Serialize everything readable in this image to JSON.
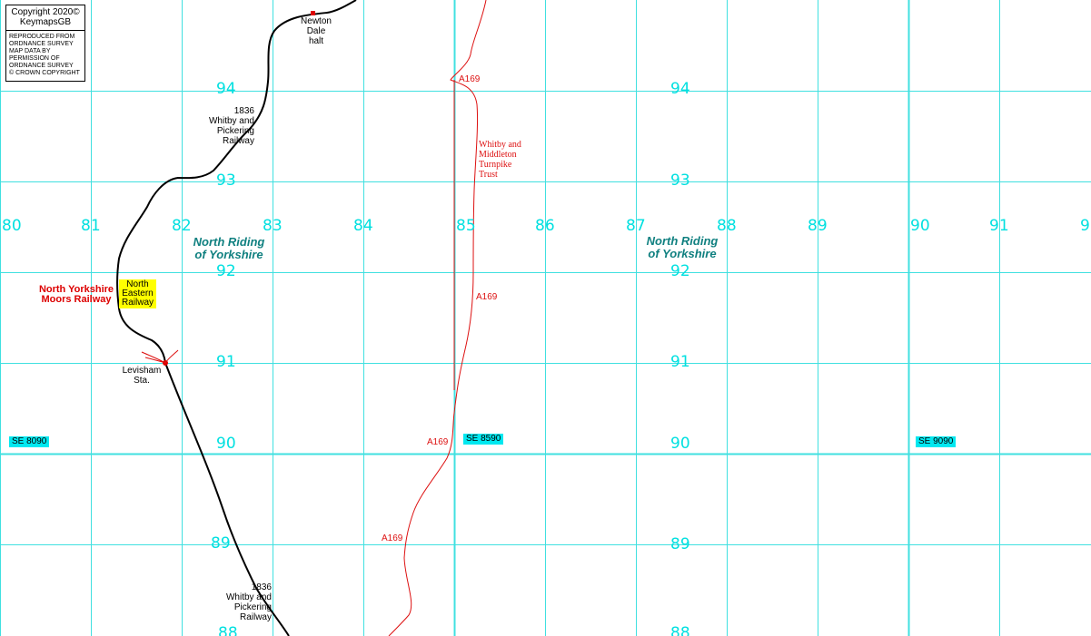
{
  "map": {
    "colors": {
      "grid": "#40e0e0",
      "grid_label": "#00e0e0",
      "railway": "#000000",
      "road": "#dd1111",
      "county": "#108080",
      "nymr_label": "#dd0000",
      "ner_background": "#ffff00",
      "gridref_background": "#00e8f0",
      "station_dot": "#dd0000"
    },
    "copyright": {
      "line1": "Copyright 2020©",
      "line2": "KeymapsGB",
      "notice_lines": [
        "REPRODUCED FROM",
        "ORDNANCE SURVEY",
        "MAP DATA BY",
        "PERMISSION OF",
        "ORDNANCE SURVEY",
        "© CROWN COPYRIGHT"
      ]
    },
    "eastings": [
      "80",
      "81",
      "82",
      "83",
      "84",
      "85",
      "86",
      "87",
      "88",
      "89",
      "90",
      "91",
      "9"
    ],
    "northings_left": [
      "94",
      "93",
      "92",
      "91",
      "90",
      "89",
      "88"
    ],
    "northings_right": [
      "94",
      "93",
      "92",
      "91",
      "90",
      "89",
      "88"
    ],
    "places": {
      "newton_dale_halt": [
        "Newton",
        "Dale",
        "halt"
      ],
      "levisham_station": [
        "Levisham",
        "Sta."
      ]
    },
    "railway_labels": {
      "upper": [
        "1836",
        "Whitby and",
        "Pickering",
        "Railway"
      ],
      "lower": [
        "1836",
        "Whitby and",
        "Pickering",
        "Railway"
      ],
      "nymr": [
        "North Yorkshire",
        "Moors Railway"
      ],
      "ner": [
        "North",
        "Eastern",
        "Railway"
      ]
    },
    "roads": {
      "a169_labels": [
        "A169",
        "A169",
        "A169",
        "A169"
      ],
      "turnpike": [
        "Whitby and",
        "Middleton",
        "Turnpike",
        "Trust"
      ]
    },
    "counties": [
      [
        "North Riding",
        "of Yorkshire"
      ],
      [
        "North Riding",
        "of Yorkshire"
      ]
    ],
    "grid_refs": [
      "SE 8090",
      "SE 8590",
      "SE 9090"
    ]
  }
}
